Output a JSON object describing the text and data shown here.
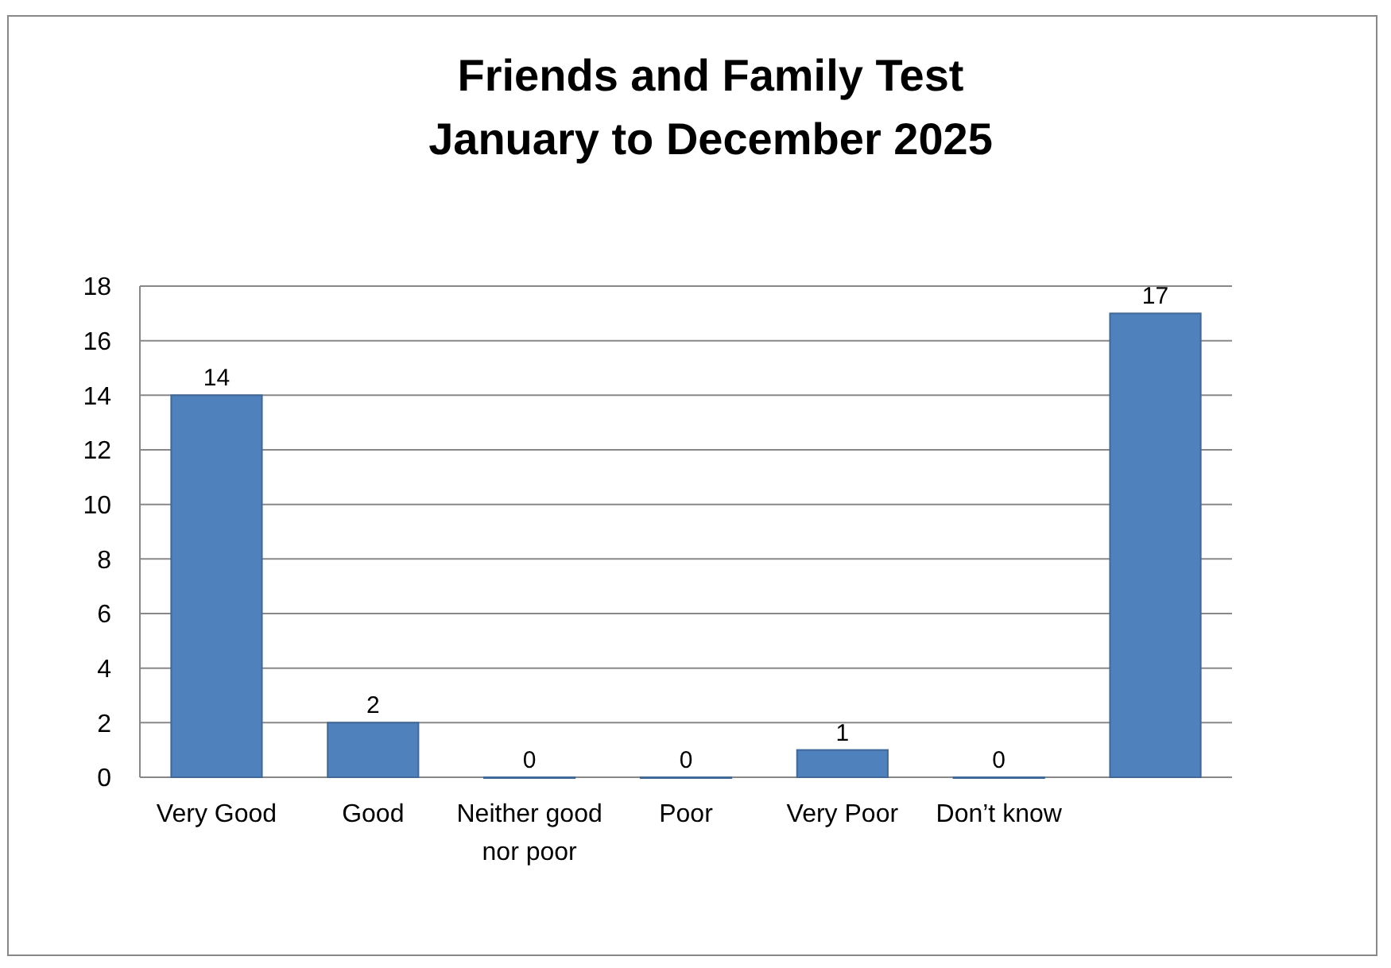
{
  "chart_data": {
    "type": "bar",
    "title": "Friends and Family Test\nJanuary to December 2025",
    "categories": [
      "Very Good",
      "Good",
      "Neither good nor poor",
      "Poor",
      "Very Poor",
      "Don’t know",
      null
    ],
    "values": [
      14,
      2,
      0,
      0,
      1,
      0,
      17
    ],
    "color": "#4f81bd",
    "ylim": [
      0,
      18
    ],
    "yticks": [
      0,
      2,
      4,
      6,
      8,
      10,
      12,
      14,
      16,
      18
    ],
    "grid": "y",
    "data_labels": true
  }
}
